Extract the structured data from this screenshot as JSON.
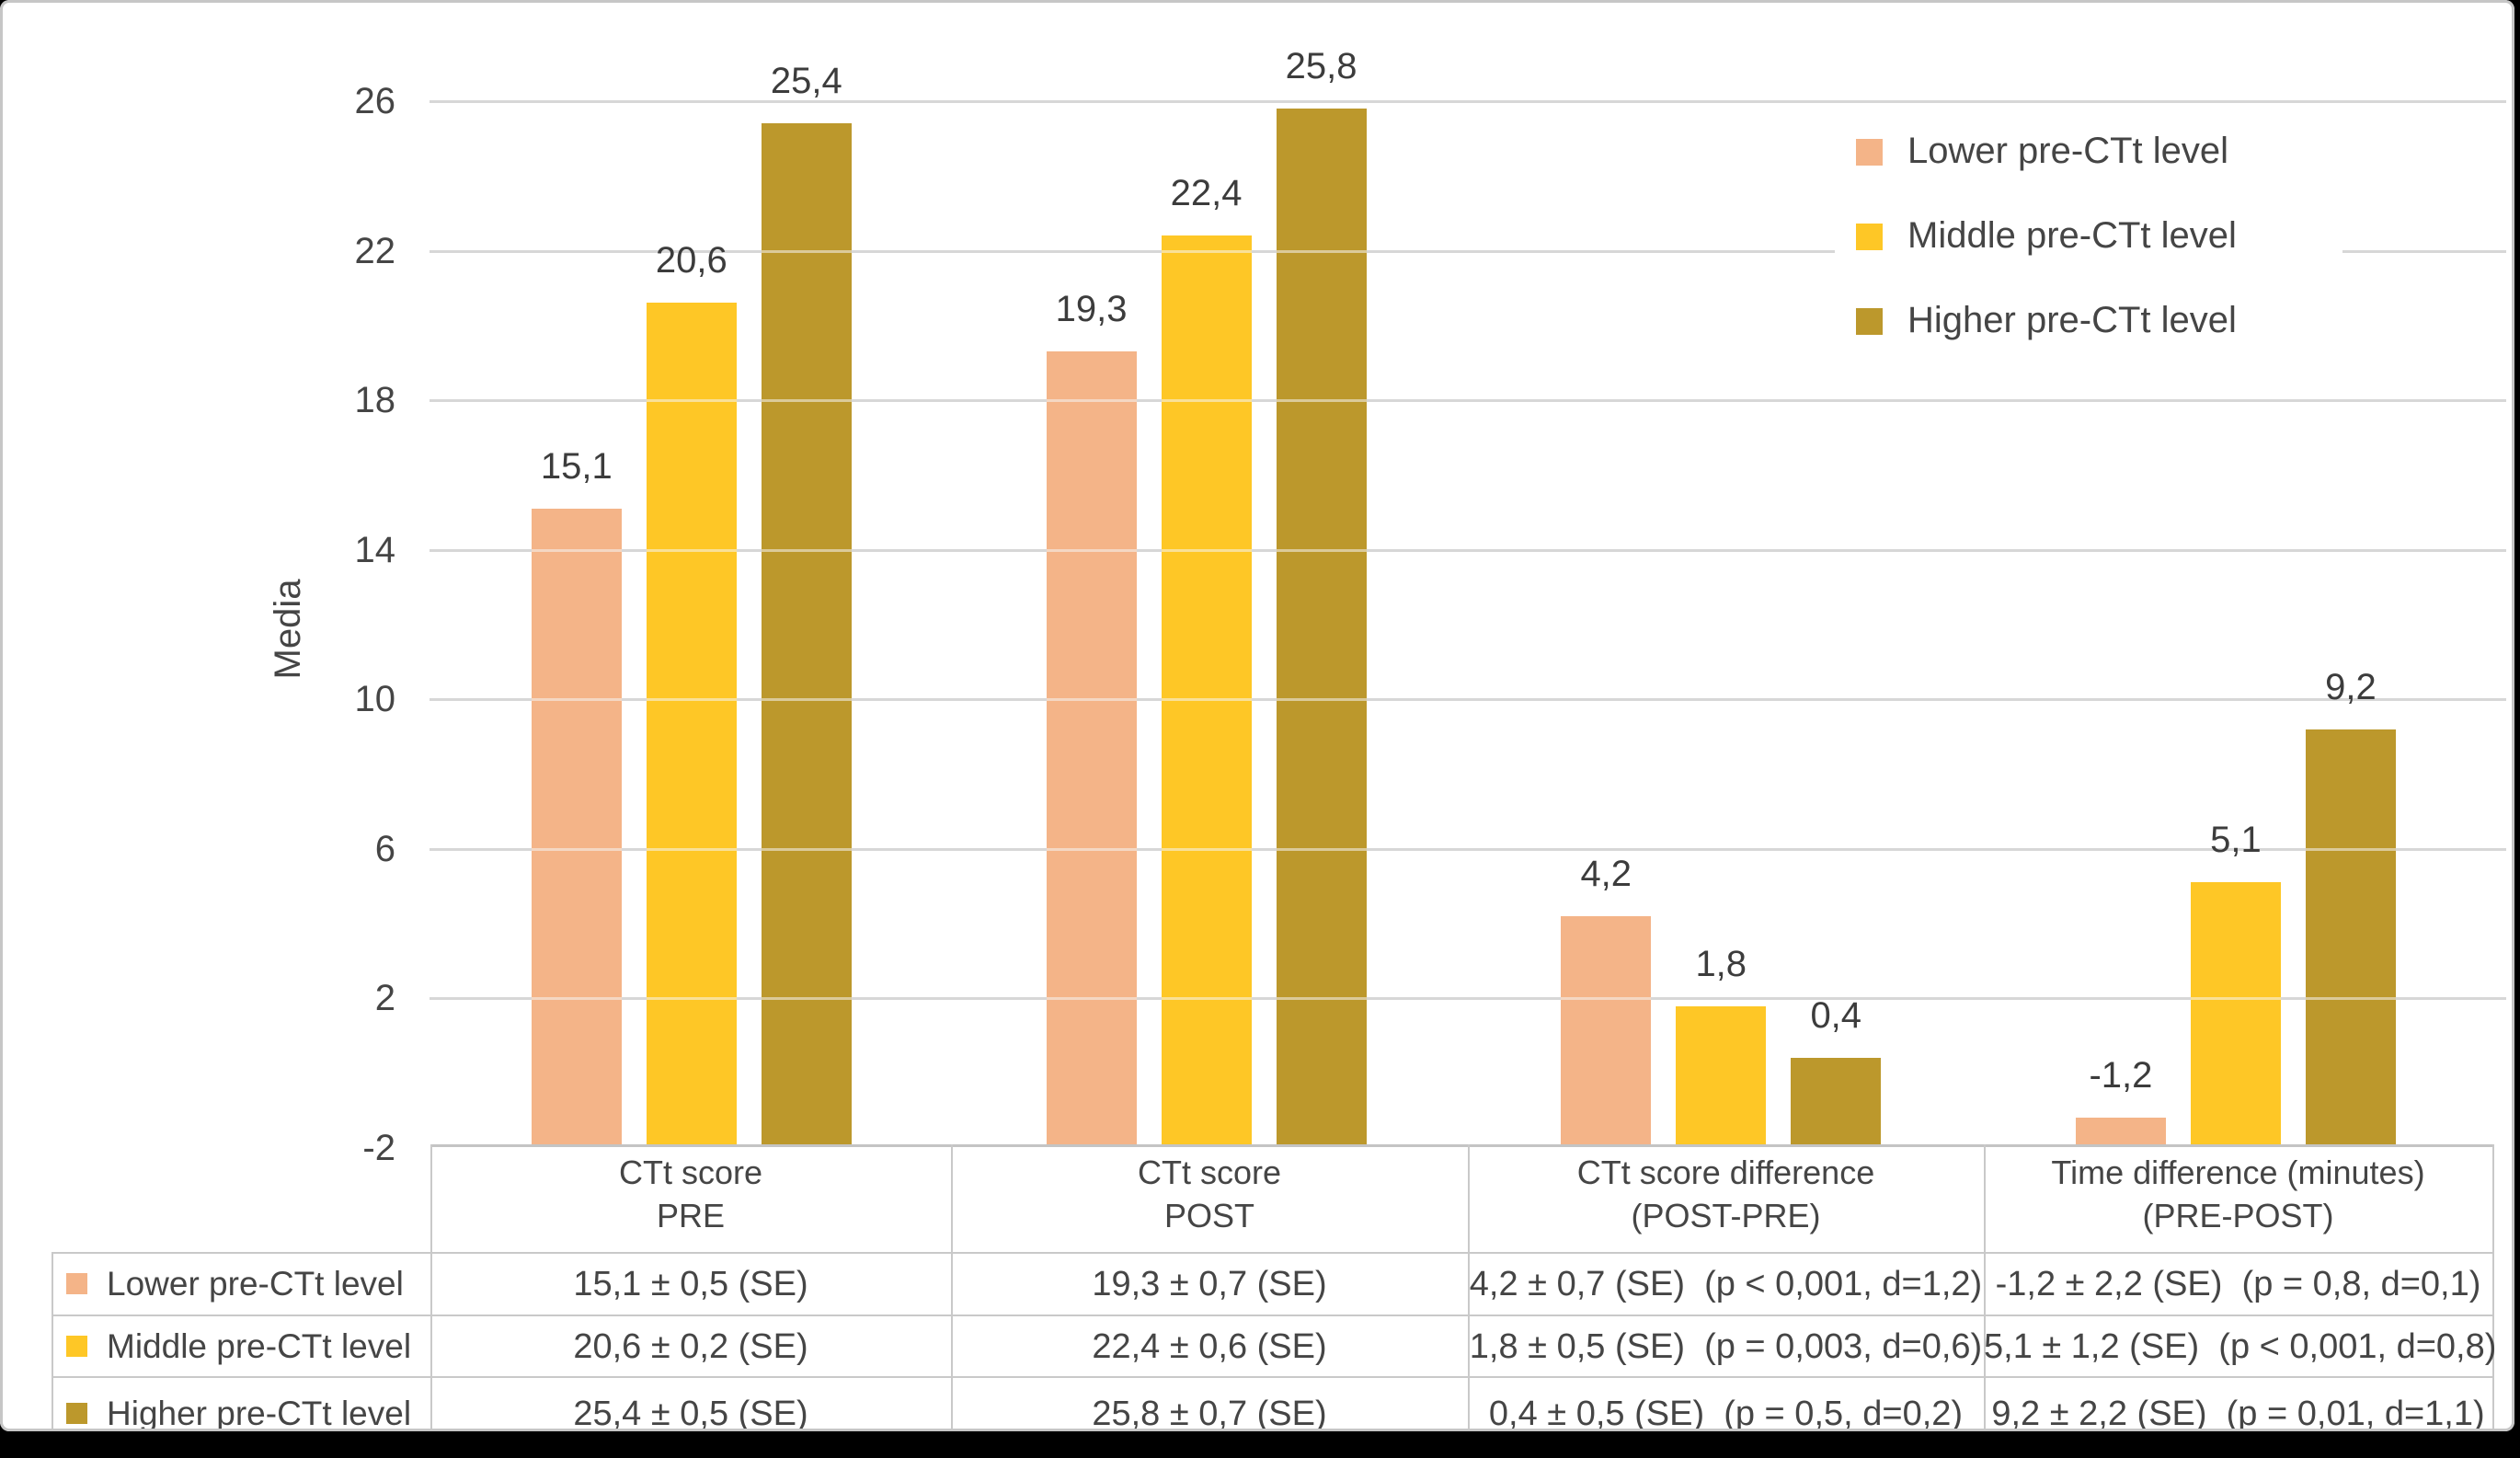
{
  "chart_data": {
    "type": "bar",
    "title": "",
    "xlabel": "",
    "ylabel": "Media",
    "ylim": [
      -2,
      26
    ],
    "ytick_interval": 4,
    "yticks": [
      {
        "value": 26,
        "label": "26"
      },
      {
        "value": 22,
        "label": "22"
      },
      {
        "value": 18,
        "label": "18"
      },
      {
        "value": 14,
        "label": "14"
      },
      {
        "value": 10,
        "label": "10"
      },
      {
        "value": 6,
        "label": "6"
      },
      {
        "value": 2,
        "label": "2"
      },
      {
        "value": -2,
        "label": "-2"
      }
    ],
    "grid": true,
    "bars_base_value": -2,
    "legend_position": "top-right",
    "categories": [
      {
        "line1": "CTt score",
        "line2": "PRE"
      },
      {
        "line1": "CTt score",
        "line2": "POST"
      },
      {
        "line1": "CTt score difference",
        "line2": "(POST-PRE)"
      },
      {
        "line1": "Time difference (minutes)",
        "line2": "(PRE-POST)"
      }
    ],
    "series": [
      {
        "name": "Lower pre-CTt level",
        "color": "#F4B488",
        "values": [
          15.1,
          19.3,
          4.2,
          -1.2
        ],
        "value_labels": [
          "15,1",
          "19,3",
          "4,2",
          "-1,2"
        ]
      },
      {
        "name": "Middle pre-CTt level",
        "color": "#FEC726",
        "values": [
          20.6,
          22.4,
          1.8,
          5.1
        ],
        "value_labels": [
          "20,6",
          "22,4",
          "1,8",
          "5,1"
        ]
      },
      {
        "name": "Higher pre-CTt level",
        "color": "#BC982C",
        "values": [
          25.4,
          25.8,
          0.4,
          9.2
        ],
        "value_labels": [
          "25,4",
          "25,8",
          "0,4",
          "9,2"
        ]
      }
    ],
    "data_table": {
      "rows": [
        {
          "name": "Lower pre-CTt level",
          "color": "#F4B488",
          "cells": [
            "15,1 ± 0,5 (SE)",
            "19,3 ± 0,7 (SE)",
            "4,2 ± 0,7 (SE)  (p < 0,001, d=1,2)",
            "-1,2 ± 2,2 (SE)  (p = 0,8, d=0,1)"
          ]
        },
        {
          "name": "Middle pre-CTt level",
          "color": "#FEC726",
          "cells": [
            "20,6 ± 0,2 (SE)",
            "22,4 ± 0,6 (SE)",
            "1,8 ± 0,5 (SE)  (p = 0,003, d=0,6)",
            "5,1 ± 1,2 (SE)  (p < 0,001, d=0,8)"
          ]
        },
        {
          "name": "Higher pre-CTt level",
          "color": "#BC982C",
          "cells": [
            "25,4 ± 0,5 (SE)",
            "25,8 ± 0,7 (SE)",
            "0,4 ± 0,5 (SE)  (p = 0,5, d=0,2)",
            "9,2 ± 2,2 (SE)  (p = 0,01, d=1,1)"
          ]
        }
      ]
    },
    "colors": {
      "page_background": "#000000",
      "chart_background": "#FFFFFF",
      "frame_border": "#C6C6C6",
      "gridline": "#D7D7D7",
      "table_border": "#C9C9C9",
      "axis_line": "#C4C4C4",
      "text": "#454545",
      "value_label_text": "#3C3C3C"
    }
  }
}
